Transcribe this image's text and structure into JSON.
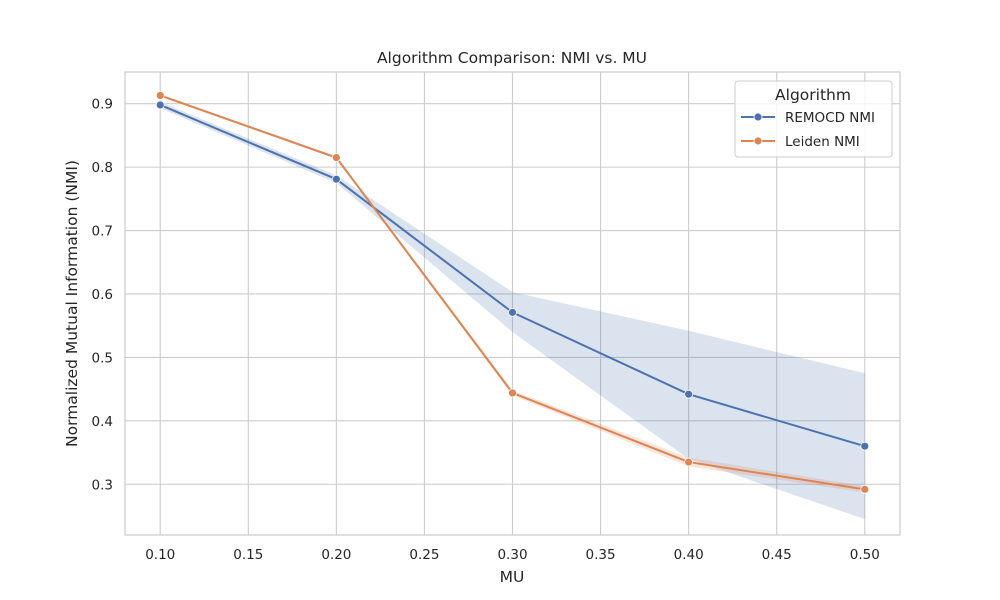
{
  "chart_data": {
    "type": "line",
    "title": "Algorithm Comparison: NMI vs. MU",
    "xlabel": "MU",
    "ylabel": "Normalized Mutual Information (NMI)",
    "xlim": [
      0.08,
      0.52
    ],
    "ylim": [
      0.22,
      0.95
    ],
    "xticks": [
      "0.10",
      "0.15",
      "0.20",
      "0.25",
      "0.30",
      "0.35",
      "0.40",
      "0.45",
      "0.50"
    ],
    "yticks": [
      "0.3",
      "0.4",
      "0.5",
      "0.6",
      "0.7",
      "0.8",
      "0.9"
    ],
    "grid": true,
    "legend": {
      "title": "Algorithm",
      "placement": "top-right"
    },
    "x": [
      0.1,
      0.2,
      0.3,
      0.4,
      0.5
    ],
    "series": [
      {
        "name": "REMOCD NMI",
        "color": "#4c72b0",
        "values": [
          0.898,
          0.781,
          0.571,
          0.442,
          0.36
        ],
        "ci_low": [
          0.893,
          0.775,
          0.54,
          0.34,
          0.245
        ],
        "ci_high": [
          0.903,
          0.787,
          0.603,
          0.542,
          0.475
        ]
      },
      {
        "name": "Leiden NMI",
        "color": "#dd8452",
        "values": [
          0.913,
          0.815,
          0.444,
          0.335,
          0.292
        ],
        "ci_low": [
          0.911,
          0.813,
          0.44,
          0.328,
          0.287
        ],
        "ci_high": [
          0.915,
          0.817,
          0.448,
          0.342,
          0.297
        ]
      }
    ]
  }
}
